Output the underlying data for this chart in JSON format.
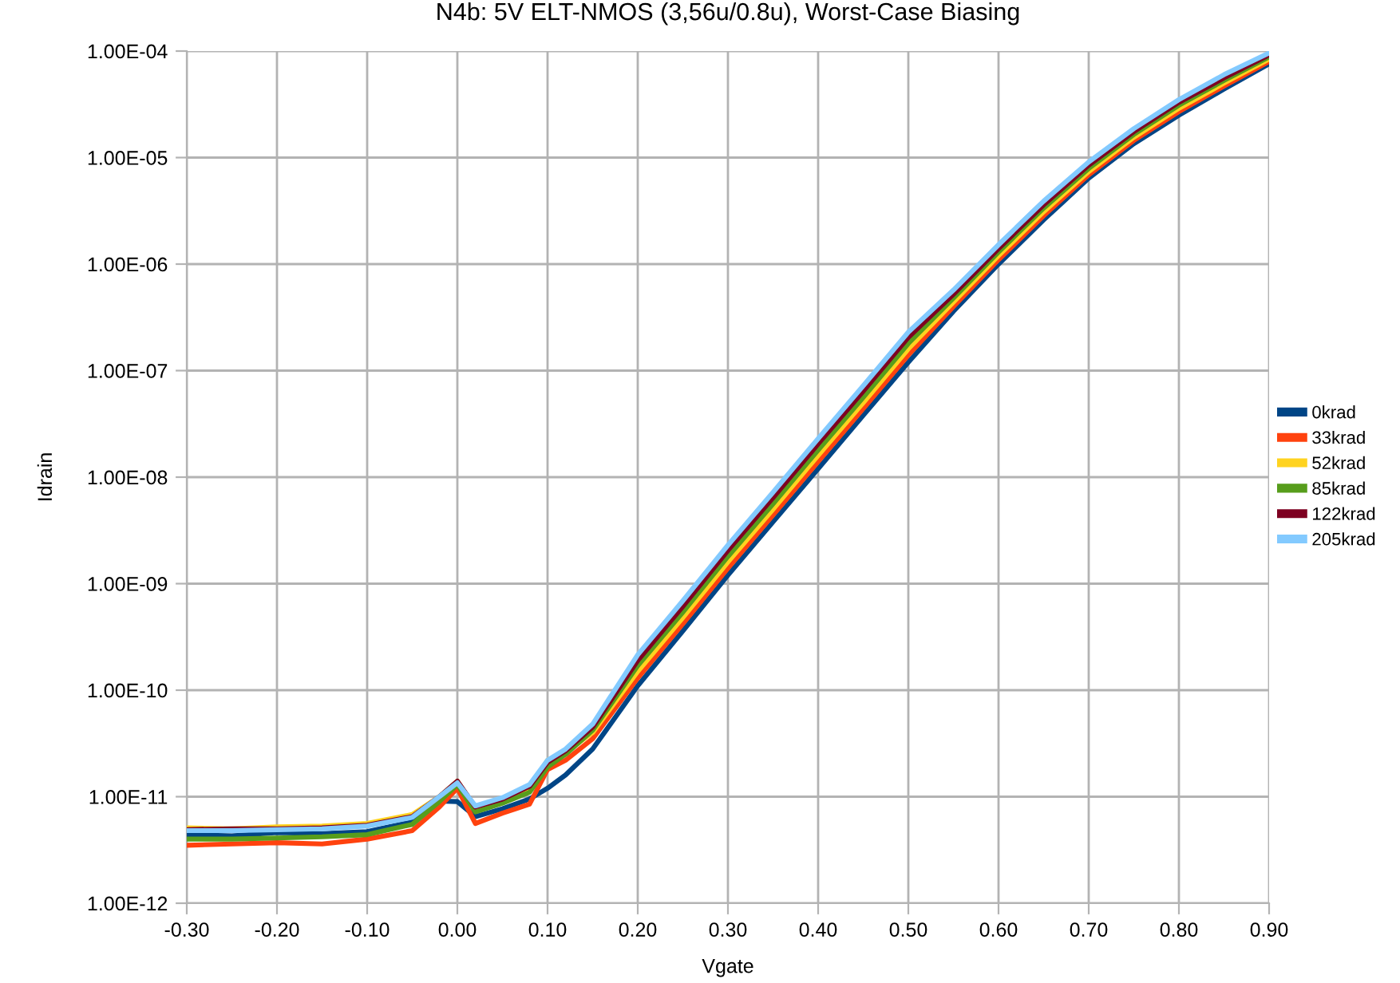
{
  "chart_data": {
    "type": "line",
    "title": "N4b: 5V ELT-NMOS (3,56u/0.8u), Worst-Case Biasing",
    "xlabel": "Vgate",
    "ylabel": "Idrain",
    "x": [
      -0.3,
      -0.25,
      -0.2,
      -0.15,
      -0.1,
      -0.05,
      -0.02,
      0.0,
      0.02,
      0.05,
      0.08,
      0.1,
      0.12,
      0.15,
      0.2,
      0.25,
      0.3,
      0.35,
      0.4,
      0.45,
      0.5,
      0.55,
      0.6,
      0.65,
      0.7,
      0.75,
      0.8,
      0.85,
      0.9
    ],
    "series": [
      {
        "name": "0krad",
        "color": "#004586",
        "values": [
          4.4e-12,
          4.3e-12,
          4.6e-12,
          4.5e-12,
          4.7e-12,
          5.8e-12,
          9.1e-12,
          9e-12,
          6.5e-12,
          7.7e-12,
          9.5e-12,
          1.2e-11,
          1.6e-11,
          2.8e-11,
          1.1e-10,
          3.6e-10,
          1.2e-09,
          3.8e-09,
          1.2e-08,
          3.8e-08,
          1.2e-07,
          3.6e-07,
          1e-06,
          2.6e-06,
          6.4e-06,
          1.35e-05,
          2.5e-05,
          4.4e-05,
          7.6e-05
        ]
      },
      {
        "name": "33krad",
        "color": "#ff420e",
        "values": [
          3.5e-12,
          3.6e-12,
          3.7e-12,
          3.6e-12,
          4e-12,
          4.8e-12,
          8e-12,
          1.2e-11,
          5.6e-12,
          7e-12,
          8.5e-12,
          1.8e-11,
          2.2e-11,
          3.5e-11,
          1.3e-10,
          4.2e-10,
          1.4e-09,
          4.4e-09,
          1.4e-08,
          4.4e-08,
          1.4e-07,
          4e-07,
          1.1e-06,
          2.85e-06,
          6.9e-06,
          1.45e-05,
          2.7e-05,
          4.7e-05,
          8e-05
        ]
      },
      {
        "name": "52krad",
        "color": "#ffd320",
        "values": [
          5.1e-12,
          5e-12,
          5.2e-12,
          5.3e-12,
          5.6e-12,
          6.8e-12,
          1e-11,
          1.4e-11,
          7.8e-12,
          9e-12,
          1.2e-11,
          2.2e-11,
          2.6e-11,
          4e-11,
          1.5e-10,
          4.8e-10,
          1.6e-09,
          5e-09,
          1.6e-08,
          5e-08,
          1.6e-07,
          4.4e-07,
          1.2e-06,
          3.1e-06,
          7.4e-06,
          1.55e-05,
          2.9e-05,
          5e-05,
          8.4e-05
        ]
      },
      {
        "name": "85krad",
        "color": "#579d1c",
        "values": [
          4e-12,
          4e-12,
          4.1e-12,
          4.2e-12,
          4.4e-12,
          5.5e-12,
          9e-12,
          1.3e-11,
          7.2e-12,
          8.7e-12,
          1.1e-11,
          1.9e-11,
          2.5e-11,
          4.2e-11,
          1.7e-10,
          5.4e-10,
          1.8e-09,
          5.6e-09,
          1.8e-08,
          5.6e-08,
          1.8e-07,
          4.8e-07,
          1.3e-06,
          3.35e-06,
          7.9e-06,
          1.65e-05,
          3.1e-05,
          5.3e-05,
          8.8e-05
        ]
      },
      {
        "name": "122krad",
        "color": "#7e0021",
        "values": [
          4.9e-12,
          5e-12,
          5e-12,
          5.1e-12,
          5.4e-12,
          6.5e-12,
          1e-11,
          1.4e-11,
          8e-12,
          9.5e-12,
          1.25e-11,
          2.1e-11,
          2.7e-11,
          4.5e-11,
          1.9e-10,
          6.1e-10,
          2.05e-09,
          6.4e-09,
          2.05e-08,
          6.4e-08,
          2.05e-07,
          5.2e-07,
          1.4e-06,
          3.6e-06,
          8.5e-06,
          1.75e-05,
          3.3e-05,
          5.6e-05,
          9.2e-05
        ]
      },
      {
        "name": "205krad",
        "color": "#83caff",
        "values": [
          4.8e-12,
          4.8e-12,
          4.9e-12,
          5e-12,
          5.3e-12,
          6.4e-12,
          1e-11,
          1.35e-11,
          8.2e-12,
          9.8e-12,
          1.3e-11,
          2.2e-11,
          2.8e-11,
          4.8e-11,
          2.15e-10,
          6.9e-10,
          2.3e-09,
          7.2e-09,
          2.3e-08,
          7.2e-08,
          2.3e-07,
          5.7e-07,
          1.52e-06,
          3.9e-06,
          9.1e-06,
          1.87e-05,
          3.5e-05,
          6e-05,
          9.6e-05
        ]
      }
    ],
    "log": "y",
    "xlim": [
      -0.3,
      0.9
    ],
    "ylim": [
      1e-12,
      0.0001
    ],
    "xticks": [
      {
        "value": -0.3,
        "label": "-0.30"
      },
      {
        "value": -0.2,
        "label": "-0.20"
      },
      {
        "value": -0.1,
        "label": "-0.10"
      },
      {
        "value": 0.0,
        "label": "0.00"
      },
      {
        "value": 0.1,
        "label": "0.10"
      },
      {
        "value": 0.2,
        "label": "0.20"
      },
      {
        "value": 0.3,
        "label": "0.30"
      },
      {
        "value": 0.4,
        "label": "0.40"
      },
      {
        "value": 0.5,
        "label": "0.50"
      },
      {
        "value": 0.6,
        "label": "0.60"
      },
      {
        "value": 0.7,
        "label": "0.70"
      },
      {
        "value": 0.8,
        "label": "0.80"
      },
      {
        "value": 0.9,
        "label": "0.90"
      }
    ],
    "yticks": [
      {
        "value": 1e-12,
        "label": "1.00E-12"
      },
      {
        "value": 1e-11,
        "label": "1.00E-11"
      },
      {
        "value": 1e-10,
        "label": "1.00E-10"
      },
      {
        "value": 1e-09,
        "label": "1.00E-09"
      },
      {
        "value": 1e-08,
        "label": "1.00E-08"
      },
      {
        "value": 1e-07,
        "label": "1.00E-07"
      },
      {
        "value": 1e-06,
        "label": "1.00E-06"
      },
      {
        "value": 1e-05,
        "label": "1.00E-05"
      },
      {
        "value": 0.0001,
        "label": "1.00E-04"
      }
    ],
    "grid": true,
    "legend": "right",
    "marker": "none",
    "line_style": "solid"
  }
}
